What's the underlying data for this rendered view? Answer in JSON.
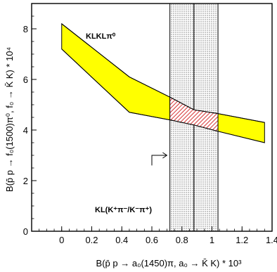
{
  "chart_data": {
    "type": "area",
    "title": "",
    "xlabel": "B(p̄ p → a₀(1450)π, a₀ → K̄ K) * 10³",
    "ylabel": "B(p̄ p → f₀(1500)π⁰, f₀ → K̄ K) * 10⁴",
    "xlim": [
      -0.2,
      1.4
    ],
    "ylim": [
      0,
      9
    ],
    "xticks": [
      0,
      0.2,
      0.4,
      0.6,
      0.8,
      1,
      1.2,
      1.4
    ],
    "xtick_labels": [
      "0",
      "0.2",
      "0.4",
      "0.6",
      "0.8",
      "1",
      "1.2",
      "1.4"
    ],
    "yticks": [
      0,
      2,
      4,
      6,
      8
    ],
    "ytick_labels": [
      "0",
      "2",
      "4",
      "6",
      "8"
    ],
    "band_KLKLpi0": {
      "label": "KLKLπ⁰",
      "color": "#ffff00",
      "x": [
        0,
        0.45,
        0.72,
        0.88,
        1.04,
        1.35
      ],
      "upper": [
        8.2,
        6.1,
        5.3,
        4.8,
        4.65,
        4.3
      ],
      "lower": [
        7.2,
        4.7,
        4.4,
        4.2,
        3.95,
        3.5
      ]
    },
    "band_KL_Kpi": {
      "label": "KL(K⁺π⁻/K⁻π⁺)",
      "color": "#bbbbbb",
      "x_ranges": [
        [
          0.72,
          0.88
        ],
        [
          0.88,
          1.04
        ]
      ]
    },
    "overlap_region": {
      "color": "#cc0000",
      "x": [
        0.72,
        0.88,
        1.04
      ]
    },
    "arrow_annotation": {
      "x": [
        0.6,
        0.7
      ],
      "y": [
        2.6,
        3.0
      ]
    }
  }
}
